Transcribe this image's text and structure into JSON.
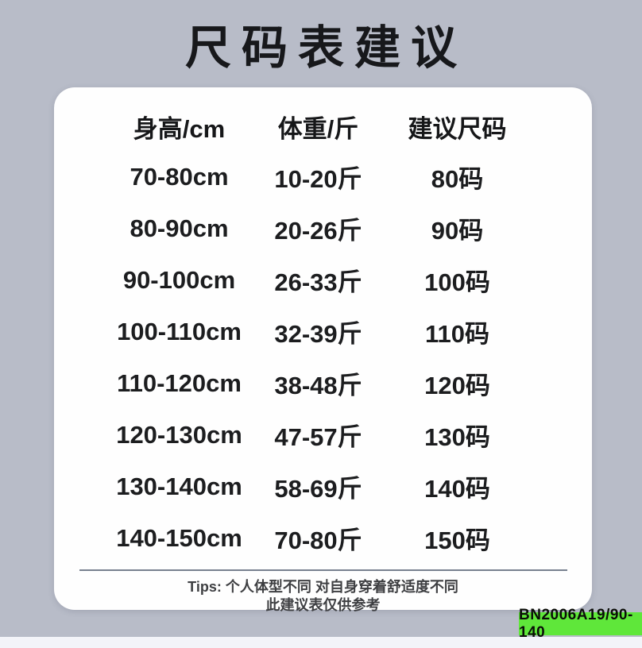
{
  "chart_data": {
    "type": "table",
    "title": "尺码表建议",
    "columns": [
      "身高/cm",
      "体重/斤",
      "建议尺码"
    ],
    "rows": [
      [
        "70-80cm",
        "10-20斤",
        "80码"
      ],
      [
        "80-90cm",
        "20-26斤",
        "90码"
      ],
      [
        "90-100cm",
        "26-33斤",
        "100码"
      ],
      [
        "100-110cm",
        "32-39斤",
        "110码"
      ],
      [
        "110-120cm",
        "38-48斤",
        "120码"
      ],
      [
        "120-130cm",
        "47-57斤",
        "130码"
      ],
      [
        "130-140cm",
        "58-69斤",
        "140码"
      ],
      [
        "140-150cm",
        "70-80斤",
        "150码"
      ]
    ],
    "layout_hints": "white rounded card on gray-blue background, 3 centered columns, no gridlines"
  },
  "tips": {
    "line1": "Tips: 个人体型不同 对自身穿着舒适度不同",
    "line2": "此建议表仅供参考"
  },
  "badge": {
    "label": "BN2006A19/90-140",
    "background": "#5fe73a"
  },
  "colors": {
    "page_background": "#b8bcc8",
    "card_background": "#fefefe",
    "text": "#1c1d1f",
    "divider": "#78818f",
    "badge_green": "#5fe73a",
    "bottom_strip": "#f3f4f9"
  }
}
